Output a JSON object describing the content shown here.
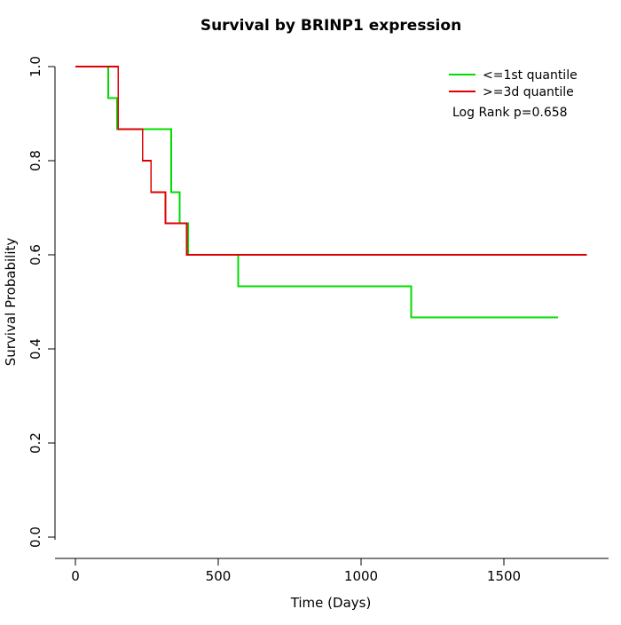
{
  "chart_data": {
    "type": "line",
    "subtype": "step-post-survival",
    "title": "Survival by BRINP1 expression",
    "xlabel": "Time (Days)",
    "ylabel": "Survival Probability",
    "xlim": [
      0,
      1800
    ],
    "ylim": [
      0.0,
      1.0
    ],
    "xticks": [
      0,
      500,
      1000,
      1500
    ],
    "yticks": [
      0.0,
      0.2,
      0.4,
      0.6,
      0.8,
      1.0
    ],
    "grid": false,
    "legend_position": "top-right",
    "annotation": "Log Rank p=0.658",
    "series": [
      {
        "name": "<=1st quantile",
        "color": "#00dd00",
        "steps": [
          [
            0,
            1.0
          ],
          [
            115,
            0.933
          ],
          [
            145,
            0.867
          ],
          [
            335,
            0.733
          ],
          [
            365,
            0.667
          ],
          [
            395,
            0.6
          ],
          [
            570,
            0.533
          ],
          [
            1175,
            0.467
          ],
          [
            1690,
            0.467
          ]
        ]
      },
      {
        "name": ">=3d quantile",
        "color": "#dd0000",
        "steps": [
          [
            0,
            1.0
          ],
          [
            150,
            0.867
          ],
          [
            235,
            0.8
          ],
          [
            265,
            0.733
          ],
          [
            315,
            0.667
          ],
          [
            390,
            0.6
          ],
          [
            1790,
            0.6
          ]
        ]
      }
    ]
  },
  "legend": {
    "item1_label": "<=1st quantile",
    "item2_label": ">=3d quantile",
    "pvalue_label": "Log Rank p=0.658"
  },
  "colors": {
    "axis": "#000000",
    "background": "#ffffff",
    "series1": "#00dd00",
    "series2": "#dd0000"
  }
}
